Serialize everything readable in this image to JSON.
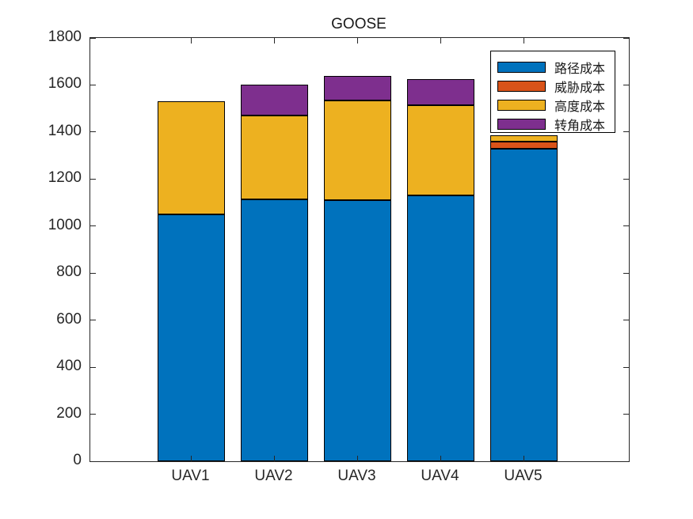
{
  "chart_data": {
    "type": "bar",
    "stacked": true,
    "title": "GOOSE",
    "xlabel": "",
    "ylabel": "",
    "categories": [
      "UAV1",
      "UAV2",
      "UAV3",
      "UAV4",
      "UAV5"
    ],
    "series": [
      {
        "name": "路径成本",
        "color": "#0072BD",
        "values": [
          1050,
          1115,
          1110,
          1130,
          1330
        ]
      },
      {
        "name": "威胁成本",
        "color": "#D95319",
        "values": [
          0,
          0,
          0,
          0,
          30
        ]
      },
      {
        "name": "高度成本",
        "color": "#EDB120",
        "values": [
          480,
          355,
          425,
          385,
          25
        ]
      },
      {
        "name": "转角成本",
        "color": "#7E2F8E",
        "values": [
          0,
          130,
          105,
          110,
          0
        ]
      }
    ],
    "stack_totals": [
      1530,
      1600,
      1640,
      1625,
      1385
    ],
    "ylim": [
      0,
      1800
    ],
    "yticks": [
      0,
      200,
      400,
      600,
      800,
      1000,
      1200,
      1400,
      1600,
      1800
    ],
    "grid": false,
    "legend_position": "top-right",
    "bar_edge_color": "#000000",
    "axis_color": "#262626"
  }
}
